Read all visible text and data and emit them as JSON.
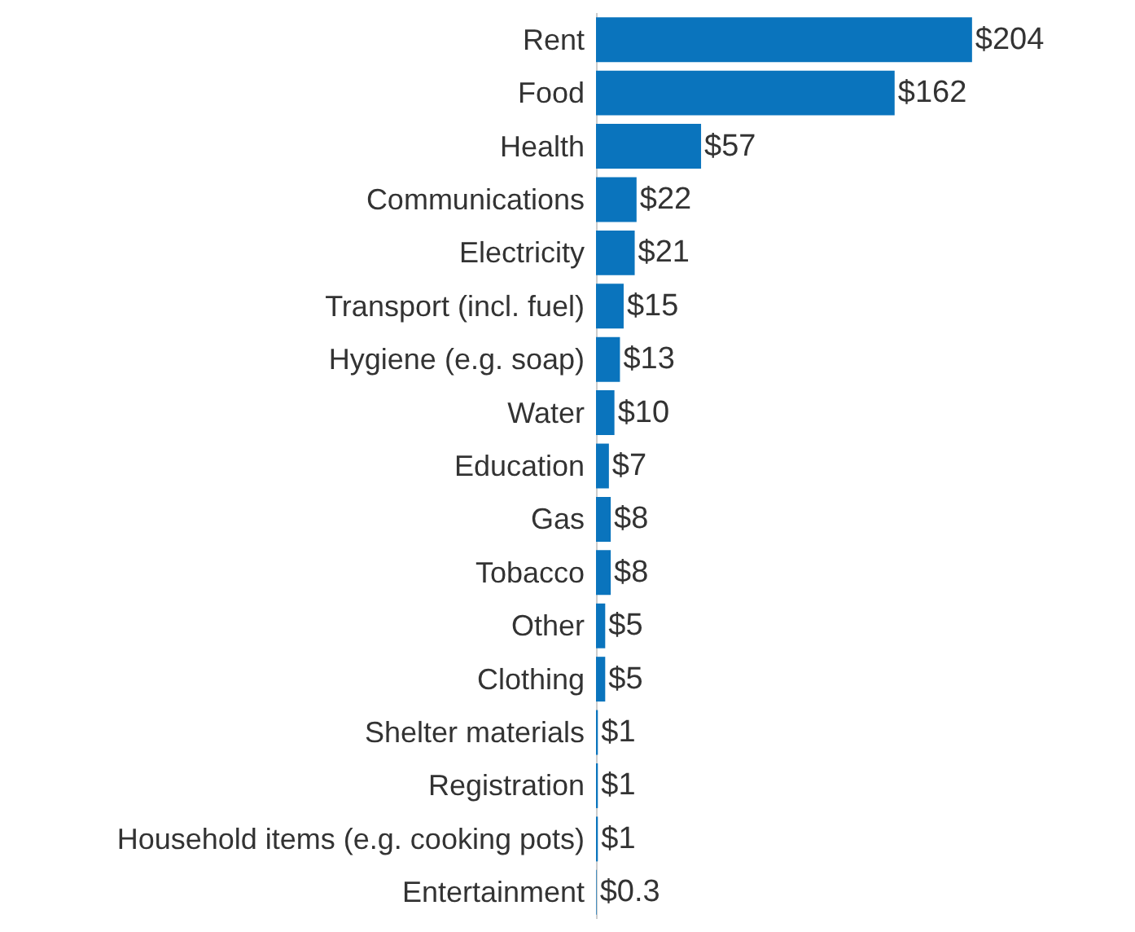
{
  "chart_data": {
    "type": "bar",
    "orientation": "horizontal",
    "categories": [
      "Rent",
      "Food",
      "Health",
      "Communications",
      "Electricity",
      "Transport (incl. fuel)",
      "Hygiene (e.g. soap)",
      "Water",
      "Education",
      "Gas",
      "Tobacco",
      "Other",
      "Clothing",
      "Shelter materials",
      "Registration",
      "Household items (e.g. cooking pots)",
      "Entertainment"
    ],
    "values": [
      204,
      162,
      57,
      22,
      21,
      15,
      13,
      10,
      7,
      8,
      8,
      5,
      5,
      1,
      1,
      1,
      0.3
    ],
    "value_labels": [
      "$204",
      "$162",
      "$57",
      "$22",
      "$21",
      "$15",
      "$13",
      "$10",
      "$7",
      "$8",
      "$8",
      "$5",
      "$5",
      "$1",
      "$1",
      "$1",
      "$0.3"
    ],
    "color": "#0a74bd",
    "tick_labels": "y"
  }
}
